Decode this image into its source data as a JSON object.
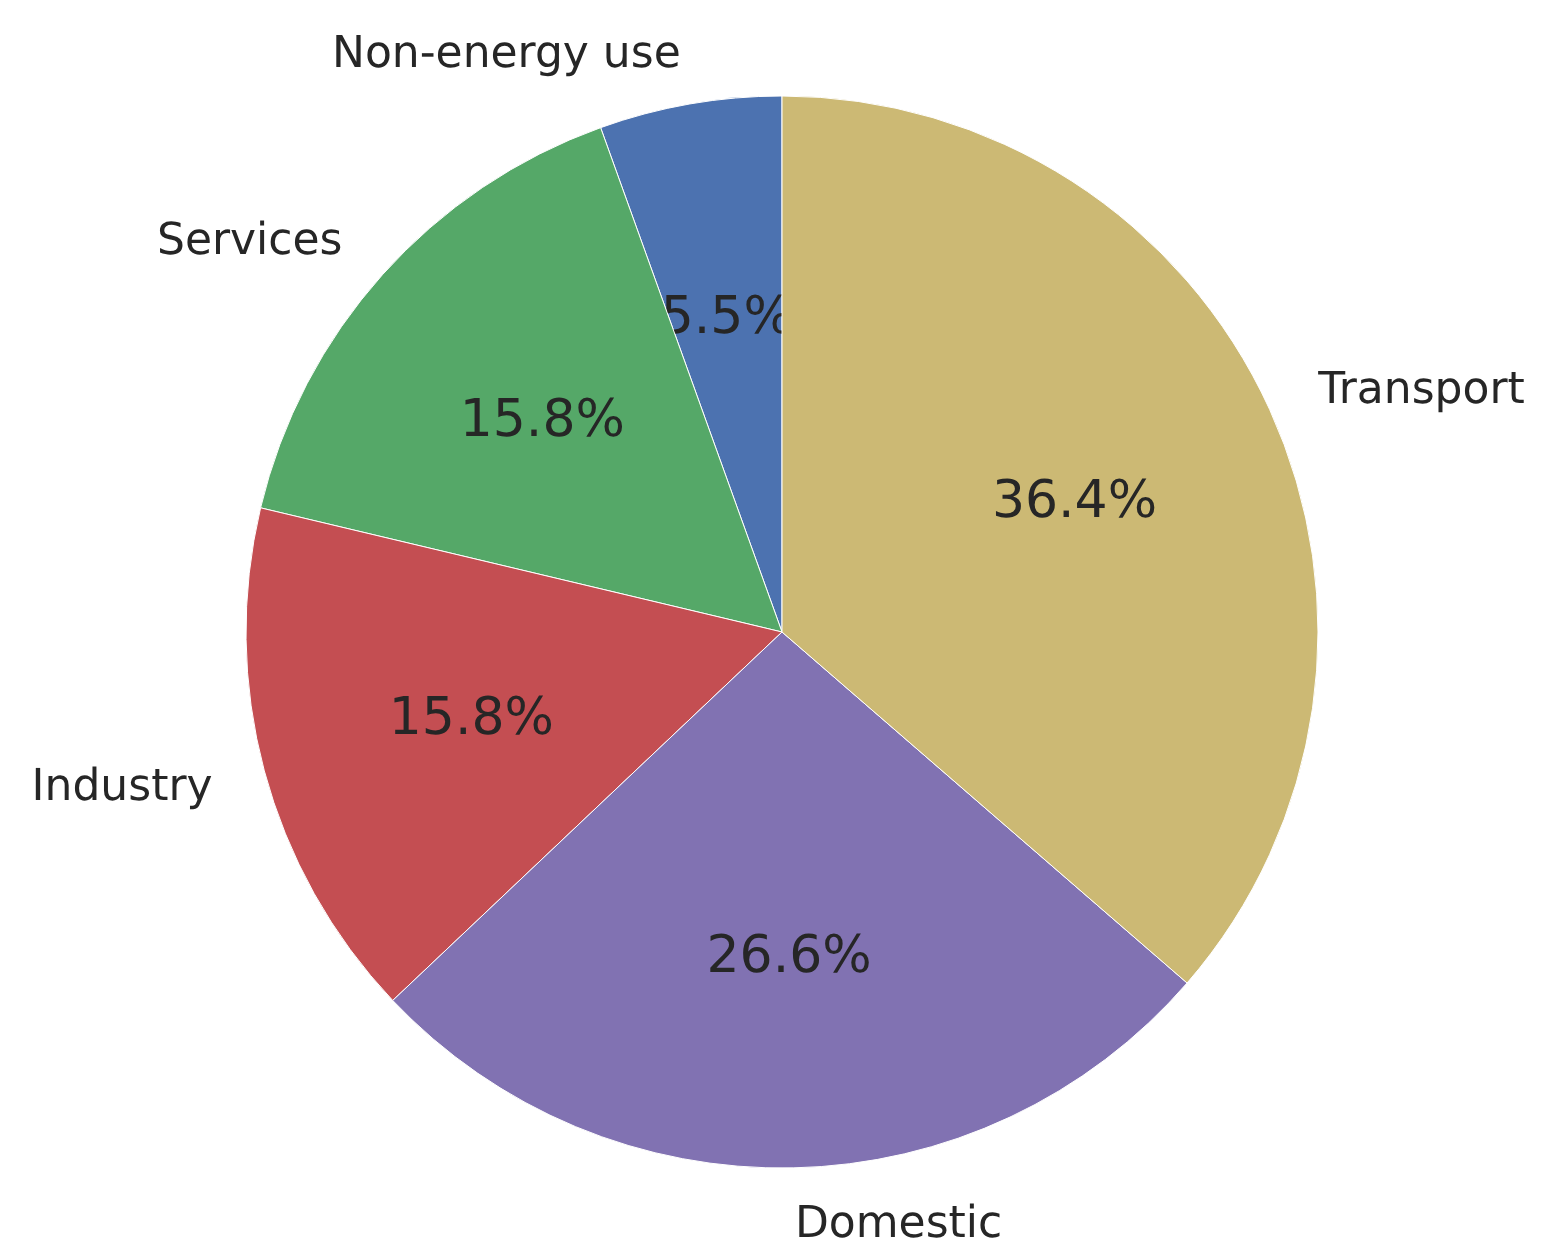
{
  "chart_data": {
    "type": "pie",
    "categories": [
      "Non-energy use",
      "Services",
      "Industry",
      "Domestic",
      "Transport"
    ],
    "values": [
      5.5,
      15.8,
      15.8,
      26.6,
      36.4
    ],
    "colors": [
      "#4c72b0",
      "#55a868",
      "#c44e52",
      "#8172b2",
      "#ccb974"
    ],
    "value_labels": [
      "5.5%",
      "15.8%",
      "15.8%",
      "26.6%",
      "36.4%"
    ]
  }
}
